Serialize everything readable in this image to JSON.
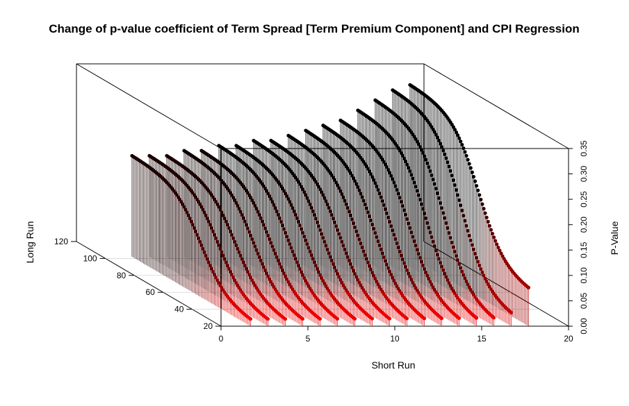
{
  "chart_data": {
    "type": "3d-histogram-scatter",
    "title": "Change of p-value coefficient of Term Spread [Term Premium Component] and CPI Regression",
    "xlabel": "Short Run",
    "ylabel": "Long Run",
    "zlabel": "P-Value",
    "x_ticks": [
      "0",
      "5",
      "10",
      "15",
      "20"
    ],
    "y_ticks": [
      "20",
      "40",
      "60",
      "80",
      "100",
      "120"
    ],
    "z_ticks": [
      "0.00",
      "0.05",
      "0.10",
      "0.15",
      "0.20",
      "0.25",
      "0.30",
      "0.35"
    ],
    "xlim": [
      0,
      20
    ],
    "ylim": [
      20,
      120
    ],
    "zlim": [
      0,
      0.35
    ],
    "short_run_values": [
      1.7,
      2.7,
      3.7,
      4.7,
      5.7,
      6.7,
      7.7,
      8.7,
      9.7,
      10.7,
      11.7,
      12.7,
      13.7,
      14.7,
      15.7,
      16.7,
      17.7
    ],
    "long_run_range": [
      20,
      102
    ],
    "series": [
      {
        "short_run": 1.7,
        "p_value_long_run_high": 0.2,
        "p_value_long_run_low": 0.01
      },
      {
        "short_run": 2.7,
        "p_value_long_run_high": 0.2,
        "p_value_long_run_low": 0.01
      },
      {
        "short_run": 3.7,
        "p_value_long_run_high": 0.2,
        "p_value_long_run_low": 0.01
      },
      {
        "short_run": 4.7,
        "p_value_long_run_high": 0.21,
        "p_value_long_run_low": 0.01
      },
      {
        "short_run": 5.7,
        "p_value_long_run_high": 0.21,
        "p_value_long_run_low": 0.01
      },
      {
        "short_run": 6.7,
        "p_value_long_run_high": 0.22,
        "p_value_long_run_low": 0.01
      },
      {
        "short_run": 7.7,
        "p_value_long_run_high": 0.22,
        "p_value_long_run_low": 0.01
      },
      {
        "short_run": 8.7,
        "p_value_long_run_high": 0.23,
        "p_value_long_run_low": 0.01
      },
      {
        "short_run": 9.7,
        "p_value_long_run_high": 0.23,
        "p_value_long_run_low": 0.01
      },
      {
        "short_run": 10.7,
        "p_value_long_run_high": 0.24,
        "p_value_long_run_low": 0.01
      },
      {
        "short_run": 11.7,
        "p_value_long_run_high": 0.25,
        "p_value_long_run_low": 0.01
      },
      {
        "short_run": 12.7,
        "p_value_long_run_high": 0.26,
        "p_value_long_run_low": 0.01
      },
      {
        "short_run": 13.7,
        "p_value_long_run_high": 0.27,
        "p_value_long_run_low": 0.01
      },
      {
        "short_run": 14.7,
        "p_value_long_run_high": 0.29,
        "p_value_long_run_low": 0.01
      },
      {
        "short_run": 15.7,
        "p_value_long_run_high": 0.31,
        "p_value_long_run_low": 0.01
      },
      {
        "short_run": 16.7,
        "p_value_long_run_high": 0.33,
        "p_value_long_run_low": 0.02
      },
      {
        "short_run": 17.7,
        "p_value_long_run_high": 0.34,
        "p_value_long_run_low": 0.07
      }
    ],
    "color_scale": {
      "low": "#ff0000",
      "high": "#000000"
    },
    "box": true,
    "grid": true
  }
}
